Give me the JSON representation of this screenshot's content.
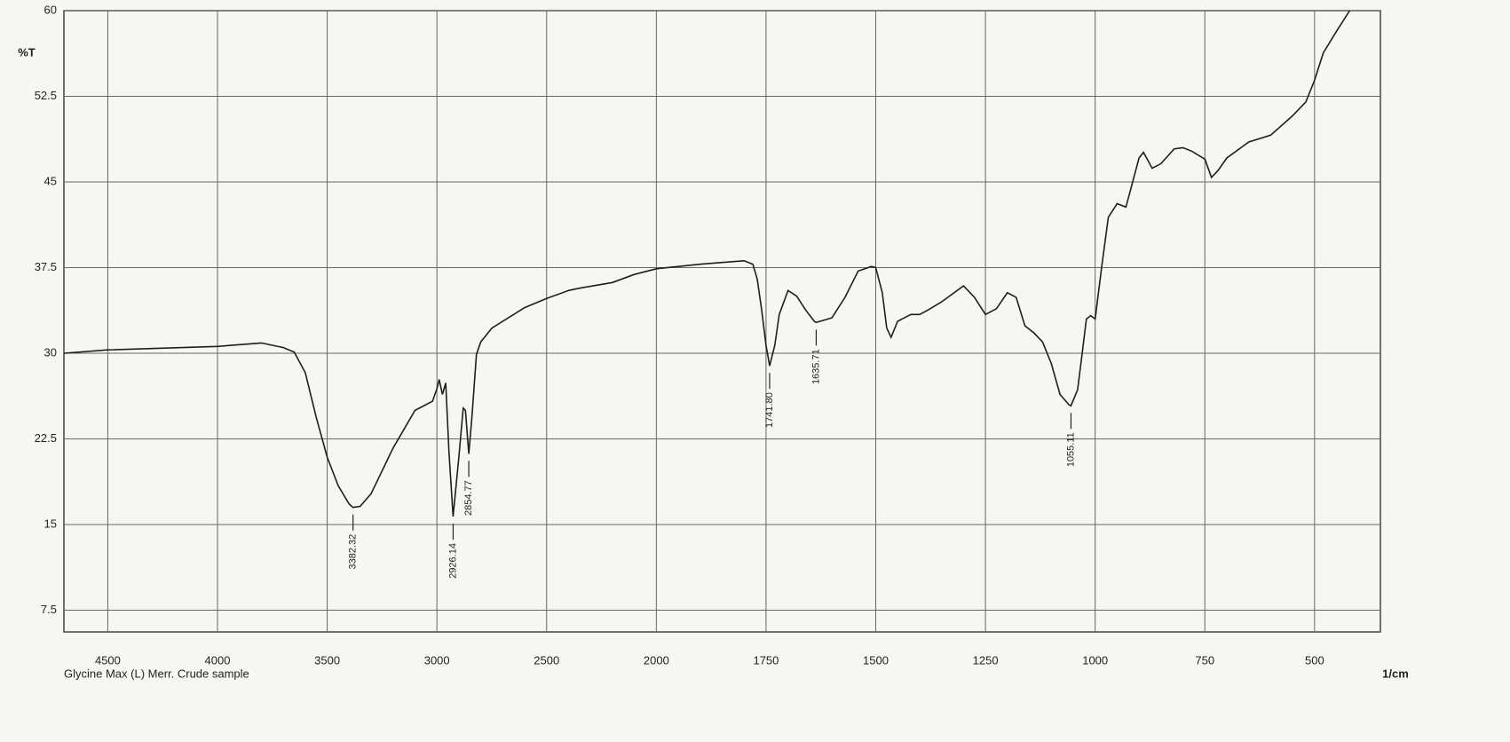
{
  "chart_data": {
    "type": "line",
    "caption": "Glycine Max (L) Merr. Crude sample",
    "x_label": "1/cm",
    "y_label": "%T",
    "color": "#1e1e1e",
    "grid": true,
    "xscale": {
      "change_at": 2000,
      "expansion": 2
    },
    "xlim": [
      4700,
      350
    ],
    "ylim": [
      5.6,
      60
    ],
    "xticks": [
      4500,
      4000,
      3500,
      3000,
      2500,
      2000,
      1750,
      1500,
      1250,
      1000,
      750,
      500
    ],
    "yticks": [
      7.5,
      15,
      22.5,
      30,
      37.5,
      45,
      52.5,
      60
    ],
    "x": [
      4700,
      4500,
      4000,
      3800,
      3700,
      3650,
      3600,
      3550,
      3500,
      3450,
      3400,
      3382.32,
      3350,
      3300,
      3200,
      3100,
      3020,
      3000,
      2990,
      2975,
      2960,
      2945,
      2926.14,
      2900,
      2880,
      2870,
      2854.77,
      2840,
      2820,
      2800,
      2750,
      2600,
      2500,
      2400,
      2350,
      2200,
      2100,
      2000,
      1900,
      1850,
      1800,
      1780,
      1770,
      1760,
      1750,
      1741.8,
      1730,
      1720,
      1700,
      1680,
      1660,
      1640,
      1635.71,
      1600,
      1570,
      1540,
      1510,
      1500,
      1485,
      1475,
      1465,
      1450,
      1420,
      1400,
      1380,
      1350,
      1300,
      1275,
      1250,
      1225,
      1200,
      1180,
      1160,
      1140,
      1120,
      1100,
      1080,
      1060,
      1055.11,
      1040,
      1030,
      1020,
      1010,
      1000,
      985,
      970,
      950,
      930,
      920,
      900,
      890,
      870,
      850,
      820,
      800,
      780,
      750,
      735,
      720,
      700,
      650,
      600,
      550,
      520,
      500,
      480,
      450,
      420
    ],
    "values": [
      30.0,
      30.3,
      30.6,
      30.9,
      30.5,
      30.1,
      28.3,
      24.4,
      20.9,
      18.4,
      16.8,
      16.5,
      16.6,
      17.7,
      21.7,
      25.0,
      25.8,
      26.9,
      27.7,
      26.4,
      27.4,
      21.3,
      15.7,
      20.9,
      25.2,
      25.0,
      21.2,
      24.5,
      29.9,
      31.0,
      32.2,
      34.0,
      34.8,
      35.5,
      35.7,
      36.2,
      36.9,
      37.4,
      37.8,
      37.95,
      38.1,
      37.8,
      36.5,
      33.8,
      30.7,
      28.9,
      30.7,
      33.4,
      35.5,
      35.0,
      33.8,
      32.8,
      32.7,
      33.1,
      34.9,
      37.2,
      37.6,
      37.5,
      35.3,
      32.2,
      31.4,
      32.8,
      33.4,
      33.4,
      33.8,
      34.5,
      35.9,
      34.9,
      33.4,
      33.9,
      35.3,
      34.9,
      32.4,
      31.8,
      31.0,
      29.1,
      26.4,
      25.5,
      25.4,
      26.8,
      29.9,
      33.0,
      33.3,
      33.0,
      37.6,
      41.9,
      43.1,
      42.8,
      44.2,
      47.1,
      47.6,
      46.2,
      46.6,
      47.9,
      48.0,
      47.7,
      47.0,
      45.4,
      46.0,
      47.1,
      48.5,
      49.1,
      50.8,
      52.0,
      53.9,
      56.3,
      58.2,
      60.0
    ],
    "peaks": [
      3382.32,
      2926.14,
      2854.77,
      {
        "value": 1741.8,
        "label": "1741.80"
      },
      1635.71,
      1055.11
    ]
  }
}
